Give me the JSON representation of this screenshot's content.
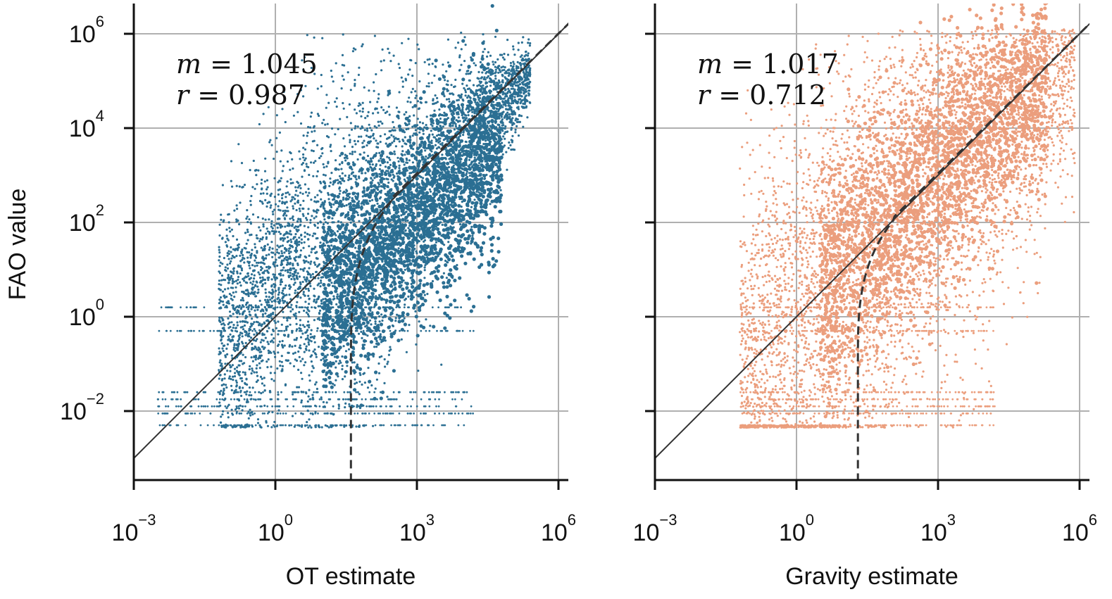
{
  "chart_data": [
    {
      "type": "scatter",
      "panel": "left",
      "xlabel": "OT estimate",
      "ylabel": "FAO value",
      "xscale": "log",
      "yscale": "log",
      "xlim": [
        0.001,
        3000000
      ],
      "ylim": [
        0.0001,
        2000000
      ],
      "xticks": [
        0.001,
        1,
        1000,
        1000000
      ],
      "xtick_labels": [
        {
          "base": "10",
          "exp": "−3"
        },
        {
          "base": "10",
          "exp": "0"
        },
        {
          "base": "10",
          "exp": "3"
        },
        {
          "base": "10",
          "exp": "6"
        }
      ],
      "yticks": [
        0.01,
        1,
        100,
        10000,
        1000000
      ],
      "ytick_labels": [
        {
          "base": "10",
          "exp": "−2"
        },
        {
          "base": "10",
          "exp": "0"
        },
        {
          "base": "10",
          "exp": "2"
        },
        {
          "base": "10",
          "exp": "4"
        },
        {
          "base": "10",
          "exp": "6"
        }
      ],
      "grid": true,
      "point_color": "#2b6f93",
      "annotation": {
        "m_label": "m",
        "m_value": "1.045",
        "r_label": "r",
        "r_value": "0.987"
      },
      "identity_line": {
        "slope": 1,
        "style": "solid",
        "color": "#333333"
      },
      "fit_curve": {
        "style": "dashed",
        "color": "#333333",
        "x_asymptote": 40,
        "joins_identity_at": 300
      },
      "point_cloud": {
        "x_log10_range": [
          -3,
          5.5
        ],
        "y_log10_range": [
          -2.3,
          5.8
        ]
      }
    },
    {
      "type": "scatter",
      "panel": "right",
      "xlabel": "Gravity estimate",
      "ylabel": "",
      "xscale": "log",
      "yscale": "log",
      "xlim": [
        0.001,
        3000000
      ],
      "ylim": [
        0.0001,
        2000000
      ],
      "xticks": [
        0.001,
        1,
        1000,
        1000000
      ],
      "xtick_labels": [
        {
          "base": "10",
          "exp": "−3"
        },
        {
          "base": "10",
          "exp": "0"
        },
        {
          "base": "10",
          "exp": "3"
        },
        {
          "base": "10",
          "exp": "6"
        }
      ],
      "yticks": [
        0.01,
        1,
        100,
        10000,
        1000000
      ],
      "grid": true,
      "point_color": "#eb9e7d",
      "annotation": {
        "m_label": "m",
        "m_value": "1.017",
        "r_label": "r",
        "r_value": "0.712"
      },
      "identity_line": {
        "slope": 1,
        "style": "solid",
        "color": "#333333"
      },
      "fit_curve": {
        "style": "dashed",
        "color": "#333333",
        "x_asymptote": 20,
        "joins_identity_at": 120
      },
      "point_cloud": {
        "x_log10_range": [
          -1.3,
          6.0
        ],
        "y_log10_range": [
          -2.3,
          6.0
        ]
      }
    }
  ]
}
